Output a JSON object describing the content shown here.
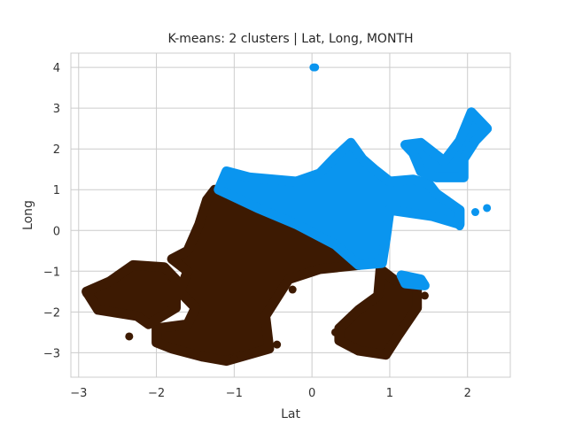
{
  "chart_data": {
    "type": "scatter",
    "title": "K-means: 2 clusters | Lat, Long, MONTH",
    "xlabel": "Lat",
    "ylabel": "Long",
    "xlim": [
      -3.1,
      2.55
    ],
    "ylim": [
      -3.6,
      4.35
    ],
    "xticks": [
      -3,
      -2,
      -1,
      0,
      1,
      2
    ],
    "yticks": [
      -3,
      -2,
      -1,
      0,
      1,
      2,
      3,
      4
    ],
    "xtick_labels": [
      "−3",
      "−2",
      "−1",
      "0",
      "1",
      "2"
    ],
    "ytick_labels": [
      "−3",
      "−2",
      "−1",
      "0",
      "1",
      "2",
      "3",
      "4"
    ],
    "grid": true,
    "legend": "none",
    "series": [
      {
        "color": "#3d1a02",
        "regions": [
          {
            "polygon": [
              [
                -1.25,
                1.0
              ],
              [
                -0.7,
                0.6
              ],
              [
                -0.2,
                0.2
              ],
              [
                0.3,
                -0.3
              ],
              [
                0.6,
                -0.85
              ],
              [
                0.1,
                -0.95
              ],
              [
                -0.3,
                -1.2
              ],
              [
                -0.6,
                -2.1
              ],
              [
                -0.55,
                -2.9
              ],
              [
                -1.1,
                -3.2
              ],
              [
                -1.4,
                -3.1
              ],
              [
                -1.8,
                -2.9
              ],
              [
                -2.0,
                -2.75
              ],
              [
                -2.0,
                -2.4
              ],
              [
                -1.6,
                -2.3
              ],
              [
                -1.5,
                -1.9
              ],
              [
                -1.7,
                -1.5
              ],
              [
                -1.6,
                -1.0
              ],
              [
                -1.8,
                -0.7
              ],
              [
                -1.6,
                -0.5
              ],
              [
                -1.45,
                0.15
              ],
              [
                -1.35,
                0.75
              ]
            ]
          },
          {
            "polygon": [
              [
                -2.3,
                -0.85
              ],
              [
                -1.9,
                -0.9
              ],
              [
                -1.75,
                -1.2
              ],
              [
                -1.75,
                -1.9
              ],
              [
                -2.1,
                -2.3
              ],
              [
                -2.25,
                -2.1
              ],
              [
                -2.75,
                -1.95
              ],
              [
                -2.9,
                -1.5
              ],
              [
                -2.6,
                -1.25
              ]
            ]
          },
          {
            "polygon": [
              [
                0.88,
                -0.95
              ],
              [
                1.05,
                -1.2
              ],
              [
                1.35,
                -1.4
              ],
              [
                1.35,
                -1.9
              ],
              [
                1.1,
                -2.6
              ],
              [
                0.95,
                -3.05
              ],
              [
                0.6,
                -2.95
              ],
              [
                0.35,
                -2.7
              ],
              [
                0.35,
                -2.4
              ],
              [
                0.6,
                -1.95
              ],
              [
                0.85,
                -1.6
              ]
            ]
          }
        ],
        "points": [
          [
            -1.0,
            -3.15
          ],
          [
            -0.45,
            -2.8
          ],
          [
            -2.35,
            -2.6
          ],
          [
            1.45,
            -1.6
          ],
          [
            0.3,
            -2.5
          ],
          [
            -0.25,
            -1.45
          ],
          [
            -2.9,
            -1.55
          ]
        ]
      },
      {
        "color": "#0a95ef",
        "regions": [
          {
            "polygon": [
              [
                -1.2,
                1.0
              ],
              [
                -1.1,
                1.45
              ],
              [
                -0.8,
                1.3
              ],
              [
                -0.2,
                1.2
              ],
              [
                0.1,
                1.4
              ],
              [
                0.3,
                1.8
              ],
              [
                0.5,
                2.15
              ],
              [
                0.65,
                1.75
              ],
              [
                0.8,
                1.5
              ],
              [
                1.0,
                1.2
              ],
              [
                1.3,
                1.25
              ],
              [
                1.5,
                1.15
              ],
              [
                1.6,
                0.9
              ],
              [
                1.9,
                0.5
              ],
              [
                1.9,
                0.15
              ],
              [
                1.55,
                0.35
              ],
              [
                1.0,
                0.5
              ],
              [
                0.95,
                -0.2
              ],
              [
                0.9,
                -0.8
              ],
              [
                0.6,
                -0.85
              ],
              [
                0.3,
                -0.35
              ],
              [
                -0.2,
                0.15
              ],
              [
                -0.7,
                0.55
              ]
            ]
          },
          {
            "polygon": [
              [
                1.2,
                2.1
              ],
              [
                1.4,
                2.15
              ],
              [
                1.7,
                1.7
              ],
              [
                1.9,
                2.2
              ],
              [
                2.05,
                2.9
              ],
              [
                2.25,
                2.5
              ],
              [
                2.1,
                2.2
              ],
              [
                1.95,
                1.75
              ],
              [
                1.95,
                1.3
              ],
              [
                1.6,
                1.3
              ],
              [
                1.4,
                1.45
              ],
              [
                1.3,
                1.9
              ]
            ]
          },
          {
            "polygon": [
              [
                1.15,
                -1.1
              ],
              [
                1.4,
                -1.2
              ],
              [
                1.45,
                -1.35
              ],
              [
                1.2,
                -1.3
              ]
            ]
          }
        ],
        "points": [
          [
            0.02,
            4.0
          ],
          [
            0.04,
            4.0
          ],
          [
            2.25,
            0.55
          ],
          [
            2.1,
            0.45
          ],
          [
            1.9,
            0.1
          ]
        ]
      }
    ]
  }
}
